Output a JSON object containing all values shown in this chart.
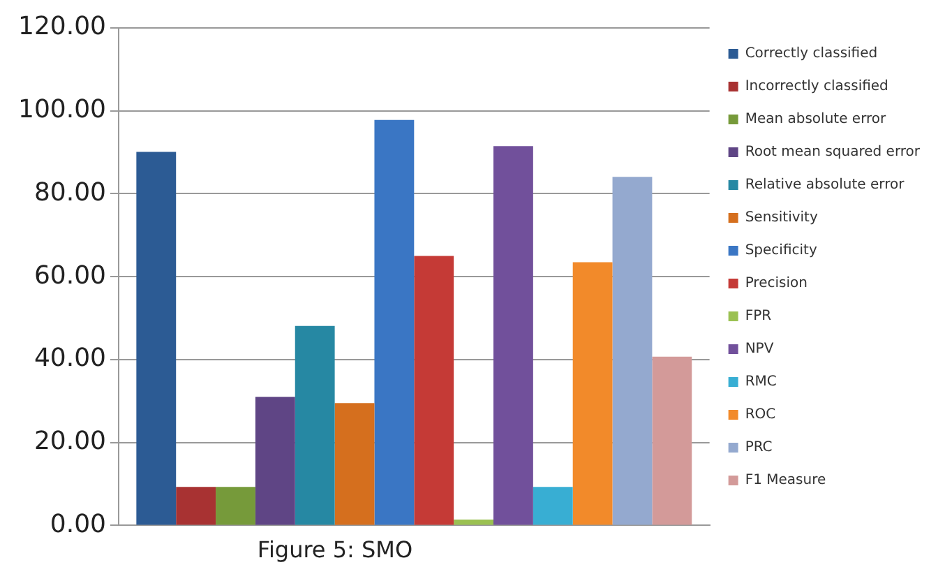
{
  "chart_data": {
    "type": "bar",
    "categories": [
      null
    ],
    "series": [
      {
        "name": "Correctly classified",
        "color": "#2c5b94",
        "values": [
          90.1
        ]
      },
      {
        "name": "Incorrectly classified",
        "color": "#a83232",
        "values": [
          9.3
        ]
      },
      {
        "name": "Mean absolute error",
        "color": "#769a3a",
        "values": [
          9.3
        ]
      },
      {
        "name": "Root mean squared error",
        "color": "#5f4585",
        "values": [
          31
        ]
      },
      {
        "name": "Relative absolute error",
        "color": "#2688a3",
        "values": [
          48.1
        ]
      },
      {
        "name": "Sensitivity",
        "color": "#d56f1e",
        "values": [
          29.5
        ]
      },
      {
        "name": "Specificity",
        "color": "#3a76c4",
        "values": [
          97.8
        ]
      },
      {
        "name": "Precision",
        "color": "#c53a36",
        "values": [
          65
        ]
      },
      {
        "name": "FPR",
        "color": "#9bc152",
        "values": [
          1.4
        ]
      },
      {
        "name": "NPV",
        "color": "#71509b",
        "values": [
          91.5
        ]
      },
      {
        "name": "RMC",
        "color": "#38aed3",
        "values": [
          9.3
        ]
      },
      {
        "name": "ROC",
        "color": "#f28a2a",
        "values": [
          63.5
        ]
      },
      {
        "name": "PRC",
        "color": "#94a9cf",
        "values": [
          84.1
        ]
      },
      {
        "name": "F1 Measure",
        "color": "#d39a99",
        "values": [
          40.7
        ]
      }
    ],
    "ylim": [
      0,
      120
    ],
    "yticks": [
      {
        "value": 0,
        "label": "0.00"
      },
      {
        "value": 20,
        "label": "20.00"
      },
      {
        "value": 40,
        "label": "40.00"
      },
      {
        "value": 60,
        "label": "60.00"
      },
      {
        "value": 80,
        "label": "80.00"
      },
      {
        "value": 100,
        "label": "100.00"
      },
      {
        "value": 120,
        "label": "120.00"
      }
    ],
    "grid": "y",
    "legend": "right",
    "annotations": [
      "Figure 5: SMO"
    ]
  }
}
